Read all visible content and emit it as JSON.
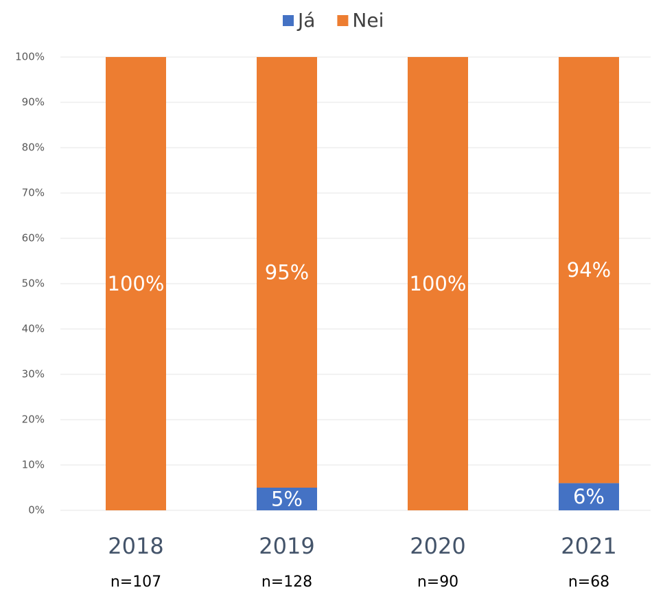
{
  "chart_data": {
    "type": "stacked_bar",
    "categories": [
      "2018",
      "2019",
      "2020",
      "2021"
    ],
    "category_notes": [
      "n=107",
      "n=128",
      "n=90",
      "n=68"
    ],
    "series": [
      {
        "name": "Já",
        "color": "#4472c4",
        "values": [
          0,
          5,
          0,
          6
        ],
        "value_labels": [
          null,
          "5%",
          null,
          "6%"
        ]
      },
      {
        "name": "Nei",
        "color": "#ed7d31",
        "values": [
          100,
          95,
          100,
          94
        ],
        "value_labels": [
          "100%",
          "95%",
          "100%",
          "94%"
        ]
      }
    ],
    "ylim": [
      0,
      100
    ],
    "yticks": [
      {
        "value": 0,
        "label": "0%"
      },
      {
        "value": 10,
        "label": "10%"
      },
      {
        "value": 20,
        "label": "20%"
      },
      {
        "value": 30,
        "label": "30%"
      },
      {
        "value": 40,
        "label": "40%"
      },
      {
        "value": 50,
        "label": "50%"
      },
      {
        "value": 60,
        "label": "60%"
      },
      {
        "value": 70,
        "label": "70%"
      },
      {
        "value": 80,
        "label": "80%"
      },
      {
        "value": 90,
        "label": "90%"
      },
      {
        "value": 100,
        "label": "100%"
      }
    ],
    "grid": true,
    "legend": "top"
  }
}
